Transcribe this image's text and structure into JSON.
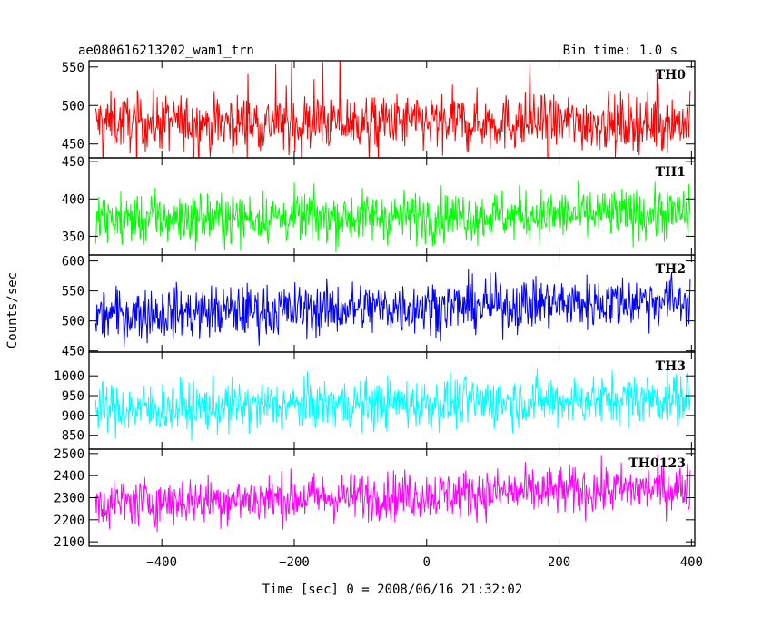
{
  "chart_data": {
    "type": "line",
    "title": "ae080616213202_wam1_trn",
    "bin_time": "Bin time: 1.0 s",
    "xlabel": "Time [sec] 0 = 2008/06/16 21:32:02",
    "ylabel": "Counts/sec",
    "xlim": [
      -510,
      405
    ],
    "x_ticks": [
      -400,
      -200,
      0,
      200,
      400
    ],
    "x_tick_labels": [
      "−400",
      "−200",
      "0",
      "200",
      "400"
    ],
    "grid": false,
    "panels": [
      {
        "name": "TH0",
        "color": "#ff0000",
        "ylim": [
          432,
          558
        ],
        "y_ticks": [
          450,
          500,
          550
        ],
        "mean": [
          478,
          478
        ],
        "noise": 18,
        "spikes": true
      },
      {
        "name": "TH1",
        "color": "#00ff00",
        "ylim": [
          325,
          455
        ],
        "y_ticks": [
          350,
          400,
          450
        ],
        "mean": [
          373,
          380
        ],
        "noise": 17,
        "spikes": false
      },
      {
        "name": "TH2",
        "color": "#0000ff",
        "ylim": [
          448,
          610
        ],
        "y_ticks": [
          450,
          500,
          550,
          600
        ],
        "mean": [
          510,
          535
        ],
        "noise": 22,
        "spikes": false
      },
      {
        "name": "TH3",
        "color": "#00ffff",
        "ylim": [
          815,
          1060
        ],
        "y_ticks": [
          850,
          900,
          950,
          1000
        ],
        "mean": [
          915,
          945
        ],
        "noise": 32,
        "spikes": false
      },
      {
        "name": "TH0123",
        "color": "#ff00ff",
        "ylim": [
          2080,
          2520
        ],
        "y_ticks": [
          2100,
          2200,
          2300,
          2400,
          2500
        ],
        "mean": [
          2275,
          2345
        ],
        "noise": 55,
        "spikes": false
      }
    ],
    "x_range": [
      -500,
      398
    ]
  }
}
